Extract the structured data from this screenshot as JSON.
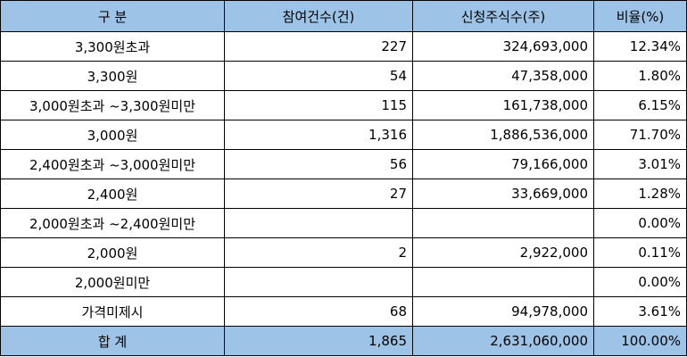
{
  "table": {
    "headers": [
      "구  분",
      "참여건수(건)",
      "신청주식수(주)",
      "비율(%)"
    ],
    "rows": [
      {
        "label": "3,300원초과",
        "count": "227",
        "shares": "324,693,000",
        "ratio": "12.34%"
      },
      {
        "label": "3,300원",
        "count": "54",
        "shares": "47,358,000",
        "ratio": "1.80%"
      },
      {
        "label": "3,000원초과 ~3,300원미만",
        "count": "115",
        "shares": "161,738,000",
        "ratio": "6.15%"
      },
      {
        "label": "3,000원",
        "count": "1,316",
        "shares": "1,886,536,000",
        "ratio": "71.70%"
      },
      {
        "label": "2,400원초과 ~3,000원미만",
        "count": "56",
        "shares": "79,166,000",
        "ratio": "3.01%"
      },
      {
        "label": "2,400원",
        "count": "27",
        "shares": "33,669,000",
        "ratio": "1.28%"
      },
      {
        "label": "2,000원초과 ~2,400원미만",
        "count": "",
        "shares": "",
        "ratio": "0.00%"
      },
      {
        "label": "2,000원",
        "count": "2",
        "shares": "2,922,000",
        "ratio": "0.11%"
      },
      {
        "label": "2,000원미만",
        "count": "",
        "shares": "",
        "ratio": "0.00%"
      },
      {
        "label": "가격미제시",
        "count": "68",
        "shares": "94,978,000",
        "ratio": "3.61%"
      }
    ],
    "total": {
      "label": "합  계",
      "count": "1,865",
      "shares": "2,631,060,000",
      "ratio": "100.00%"
    }
  },
  "colors": {
    "header_background": "#9dc3e6",
    "border": "#000000"
  }
}
